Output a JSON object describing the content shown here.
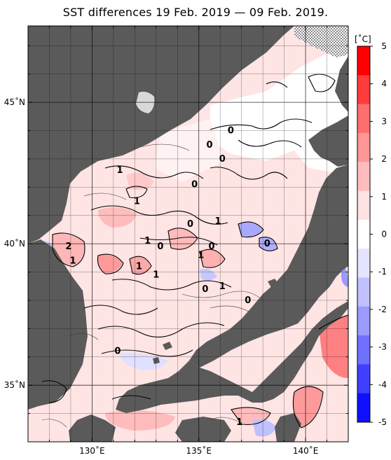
{
  "title": "SST differences 19 Feb. 2019 — 09 Feb. 2019.",
  "map": {
    "region": "Sea of Japan",
    "lon_range": [
      127,
      142
    ],
    "lat_range": [
      33,
      47.7
    ],
    "grid": true,
    "land_color": "#5a5a5a",
    "lon_ticks": [
      {
        "value": 130,
        "label": "130˚E"
      },
      {
        "value": 135,
        "label": "135˚E"
      },
      {
        "value": 140,
        "label": "140˚E"
      }
    ],
    "lat_ticks": [
      {
        "value": 45,
        "label": "45˚N"
      },
      {
        "value": 40,
        "label": "40˚N"
      },
      {
        "value": 35,
        "label": "35˚N"
      }
    ],
    "contour_labels": [
      {
        "text": "0",
        "lon": 136.5,
        "lat": 43.9
      },
      {
        "text": "0",
        "lon": 135.5,
        "lat": 43.4
      },
      {
        "text": "0",
        "lon": 136.1,
        "lat": 42.9
      },
      {
        "text": "1",
        "lon": 131.3,
        "lat": 42.5
      },
      {
        "text": "0",
        "lon": 134.8,
        "lat": 42.0
      },
      {
        "text": "1",
        "lon": 132.1,
        "lat": 41.4
      },
      {
        "text": "0",
        "lon": 134.6,
        "lat": 40.6
      },
      {
        "text": "1",
        "lon": 135.9,
        "lat": 40.7
      },
      {
        "text": "1",
        "lon": 132.6,
        "lat": 40.0
      },
      {
        "text": "0",
        "lon": 133.2,
        "lat": 39.8
      },
      {
        "text": "2",
        "lon": 128.9,
        "lat": 39.8
      },
      {
        "text": "1",
        "lon": 129.1,
        "lat": 39.3
      },
      {
        "text": "1",
        "lon": 132.2,
        "lat": 39.1
      },
      {
        "text": "1",
        "lon": 135.1,
        "lat": 39.5
      },
      {
        "text": "0",
        "lon": 135.6,
        "lat": 39.8
      },
      {
        "text": "0",
        "lon": 138.2,
        "lat": 39.9
      },
      {
        "text": "1",
        "lon": 133.0,
        "lat": 38.8
      },
      {
        "text": "0",
        "lon": 135.3,
        "lat": 38.3
      },
      {
        "text": "1",
        "lon": 136.1,
        "lat": 38.4
      },
      {
        "text": "0",
        "lon": 137.3,
        "lat": 37.9
      },
      {
        "text": "0",
        "lon": 131.2,
        "lat": 36.1
      },
      {
        "text": "1",
        "lon": 136.9,
        "lat": 33.6
      }
    ]
  },
  "colorbar": {
    "unit": "[˚C]",
    "min": -5,
    "max": 5,
    "ticks": [
      "5",
      "4",
      "3",
      "2",
      "1",
      "0",
      "-1",
      "-2",
      "-3",
      "-4",
      "-5"
    ],
    "colors_top_to_bottom": [
      "#ff0000",
      "#ff3c3c",
      "#ff6e6e",
      "#ff9696",
      "#ffbcbc",
      "#ffe2e2",
      "#ffffff",
      "#e4e4ff",
      "#c0c0ff",
      "#9a9aff",
      "#7070ff",
      "#4040ff",
      "#1010ff"
    ]
  }
}
